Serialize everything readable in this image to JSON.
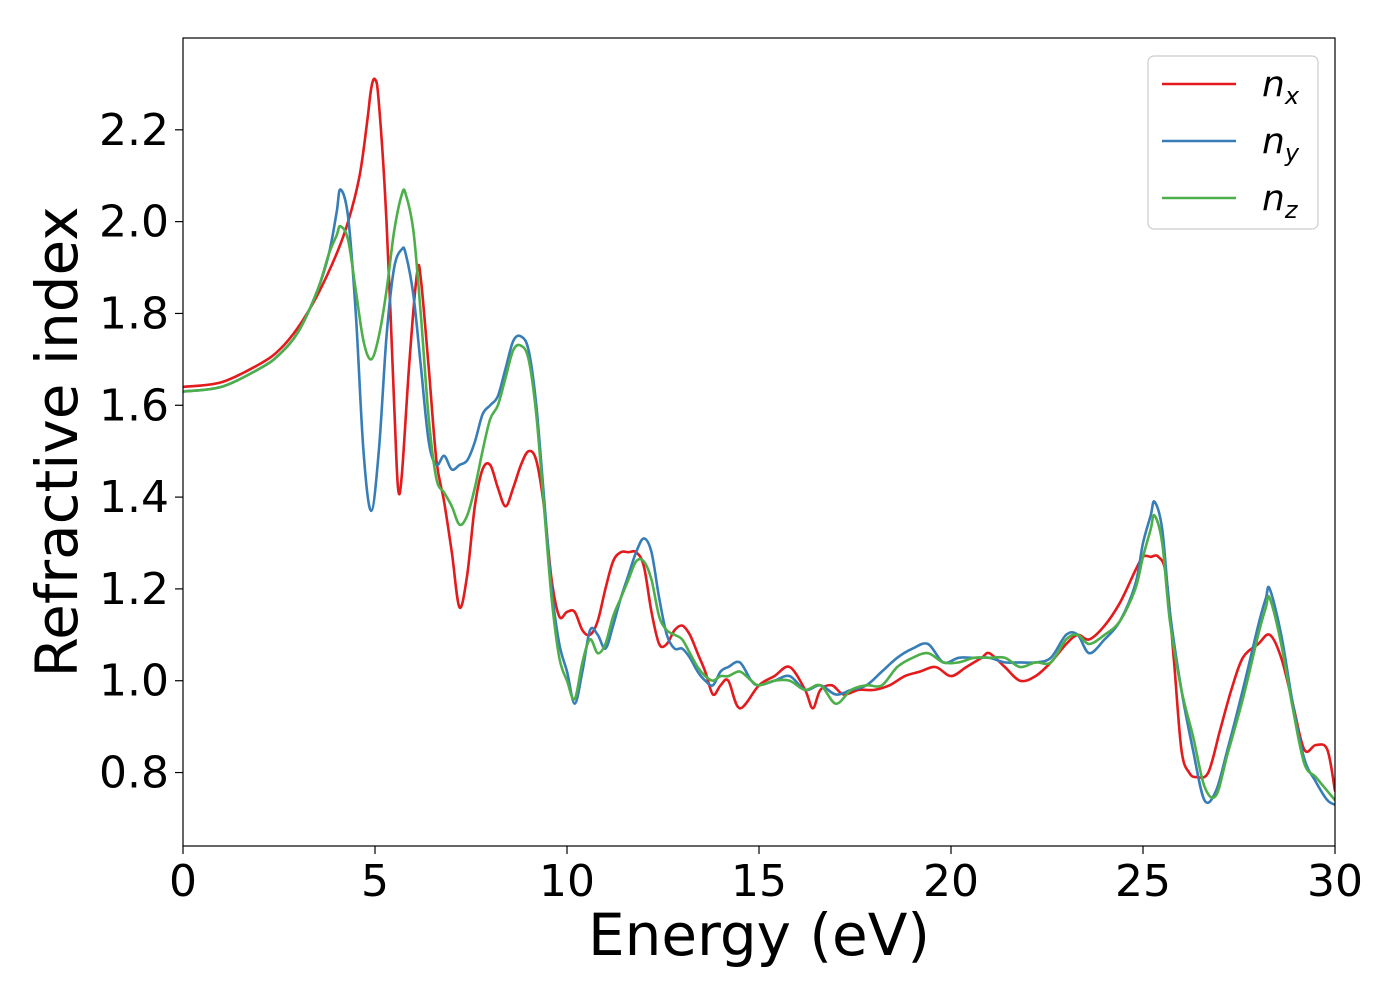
{
  "chart_data": {
    "type": "line",
    "xlabel": "Energy (eV)",
    "ylabel": "Refractive index",
    "xlim": [
      0,
      30
    ],
    "ylim": [
      0.64,
      2.4
    ],
    "xticks": [
      0,
      5,
      10,
      15,
      20,
      25,
      30
    ],
    "xtick_labels": [
      "0",
      "5",
      "10",
      "15",
      "20",
      "25",
      "30"
    ],
    "yticks": [
      0.8,
      1.0,
      1.2,
      1.4,
      1.6,
      1.8,
      2.0,
      2.2
    ],
    "ytick_labels": [
      "0.8",
      "1.0",
      "1.2",
      "1.4",
      "1.6",
      "1.8",
      "2.0",
      "2.2"
    ],
    "grid": false,
    "legend_position": "top-right",
    "series": [
      {
        "name": "n_x",
        "name_base": "n",
        "name_sub": "x",
        "color": "#e41a1c",
        "x": [
          0,
          1,
          2,
          2.5,
          3,
          3.5,
          4,
          4.3,
          4.6,
          4.8,
          4.9,
          5.0,
          5.1,
          5.3,
          5.5,
          5.6,
          5.7,
          5.9,
          6.1,
          6.2,
          6.4,
          6.6,
          6.8,
          7.0,
          7.2,
          7.4,
          7.6,
          7.8,
          8.0,
          8.2,
          8.4,
          8.6,
          8.8,
          9.0,
          9.2,
          9.4,
          9.6,
          9.8,
          10.0,
          10.2,
          10.4,
          10.6,
          10.8,
          11.0,
          11.2,
          11.4,
          11.6,
          11.8,
          12.0,
          12.2,
          12.4,
          12.6,
          12.8,
          13.0,
          13.2,
          13.4,
          13.6,
          13.8,
          14.0,
          14.2,
          14.5,
          15.0,
          15.4,
          15.8,
          16.2,
          16.4,
          16.6,
          16.9,
          17.2,
          17.6,
          18.0,
          18.4,
          18.8,
          19.2,
          19.6,
          20.0,
          20.4,
          20.8,
          21.0,
          21.4,
          21.8,
          22.2,
          22.6,
          23.0,
          23.3,
          23.6,
          24.0,
          24.4,
          24.8,
          25.0,
          25.2,
          25.4,
          25.6,
          25.8,
          26.0,
          26.2,
          26.4,
          26.7,
          27.0,
          27.3,
          27.6,
          28.0,
          28.3,
          28.6,
          28.9,
          29.2,
          29.5,
          29.8,
          30.0
        ],
        "values": [
          1.64,
          1.65,
          1.69,
          1.72,
          1.77,
          1.84,
          1.93,
          2.0,
          2.1,
          2.22,
          2.29,
          2.31,
          2.26,
          2.0,
          1.6,
          1.42,
          1.45,
          1.7,
          1.89,
          1.87,
          1.68,
          1.48,
          1.39,
          1.28,
          1.16,
          1.23,
          1.38,
          1.46,
          1.47,
          1.42,
          1.38,
          1.42,
          1.47,
          1.5,
          1.48,
          1.38,
          1.22,
          1.14,
          1.15,
          1.15,
          1.11,
          1.1,
          1.13,
          1.2,
          1.26,
          1.28,
          1.28,
          1.28,
          1.25,
          1.15,
          1.08,
          1.08,
          1.11,
          1.12,
          1.1,
          1.06,
          1.02,
          0.97,
          0.99,
          1.0,
          0.94,
          0.99,
          1.01,
          1.03,
          0.98,
          0.94,
          0.98,
          0.99,
          0.97,
          0.98,
          0.98,
          0.99,
          1.01,
          1.02,
          1.03,
          1.01,
          1.03,
          1.05,
          1.06,
          1.03,
          1.0,
          1.01,
          1.04,
          1.08,
          1.1,
          1.09,
          1.12,
          1.17,
          1.24,
          1.27,
          1.27,
          1.27,
          1.23,
          1.05,
          0.85,
          0.8,
          0.79,
          0.8,
          0.89,
          0.98,
          1.05,
          1.08,
          1.1,
          1.05,
          0.95,
          0.85,
          0.86,
          0.85,
          0.76
        ]
      },
      {
        "name": "n_y",
        "name_base": "n",
        "name_sub": "y",
        "color": "#377eb8",
        "x": [
          0,
          1,
          2,
          2.5,
          3,
          3.5,
          3.8,
          4.0,
          4.1,
          4.3,
          4.5,
          4.7,
          4.9,
          5.1,
          5.3,
          5.5,
          5.7,
          5.8,
          6.0,
          6.2,
          6.4,
          6.6,
          6.8,
          7.0,
          7.2,
          7.4,
          7.6,
          7.8,
          8.0,
          8.2,
          8.4,
          8.6,
          8.8,
          9.0,
          9.2,
          9.4,
          9.6,
          9.8,
          10.0,
          10.2,
          10.4,
          10.6,
          10.8,
          11.0,
          11.2,
          11.4,
          11.6,
          11.8,
          12.0,
          12.2,
          12.4,
          12.6,
          12.8,
          13.0,
          13.2,
          13.4,
          13.6,
          13.8,
          14.0,
          14.2,
          14.5,
          14.8,
          15.0,
          15.4,
          15.8,
          16.2,
          16.6,
          17.0,
          17.4,
          17.8,
          18.2,
          18.6,
          19.0,
          19.4,
          19.8,
          20.2,
          20.6,
          21.0,
          21.4,
          21.8,
          22.2,
          22.6,
          23.0,
          23.3,
          23.6,
          24.0,
          24.4,
          24.8,
          25.0,
          25.2,
          25.3,
          25.5,
          25.7,
          26.0,
          26.3,
          26.6,
          26.9,
          27.2,
          27.6,
          28.0,
          28.2,
          28.3,
          28.6,
          28.9,
          29.2,
          29.5,
          29.8,
          30.0
        ],
        "values": [
          1.63,
          1.64,
          1.68,
          1.71,
          1.76,
          1.85,
          1.93,
          2.02,
          2.07,
          2.01,
          1.8,
          1.5,
          1.37,
          1.5,
          1.75,
          1.9,
          1.94,
          1.93,
          1.84,
          1.68,
          1.52,
          1.47,
          1.49,
          1.46,
          1.47,
          1.48,
          1.52,
          1.58,
          1.6,
          1.62,
          1.68,
          1.74,
          1.75,
          1.72,
          1.6,
          1.4,
          1.2,
          1.08,
          1.02,
          0.95,
          1.02,
          1.11,
          1.1,
          1.07,
          1.12,
          1.18,
          1.23,
          1.28,
          1.31,
          1.28,
          1.18,
          1.1,
          1.07,
          1.07,
          1.05,
          1.02,
          1.0,
          0.99,
          1.02,
          1.03,
          1.04,
          1.0,
          0.99,
          1.0,
          1.01,
          0.98,
          0.99,
          0.97,
          0.98,
          0.99,
          1.02,
          1.05,
          1.07,
          1.08,
          1.04,
          1.05,
          1.05,
          1.05,
          1.04,
          1.04,
          1.04,
          1.05,
          1.1,
          1.1,
          1.06,
          1.09,
          1.13,
          1.21,
          1.3,
          1.36,
          1.39,
          1.33,
          1.15,
          0.98,
          0.85,
          0.74,
          0.76,
          0.85,
          0.98,
          1.12,
          1.18,
          1.2,
          1.1,
          0.95,
          0.83,
          0.78,
          0.74,
          0.73
        ]
      },
      {
        "name": "n_z",
        "name_base": "n",
        "name_sub": "z",
        "color": "#4daf4a",
        "x": [
          0,
          1,
          2,
          2.5,
          3,
          3.5,
          3.8,
          4.0,
          4.1,
          4.3,
          4.5,
          4.7,
          4.9,
          5.1,
          5.3,
          5.5,
          5.7,
          5.8,
          6.0,
          6.2,
          6.4,
          6.6,
          6.8,
          7.0,
          7.2,
          7.4,
          7.6,
          7.8,
          8.0,
          8.2,
          8.4,
          8.6,
          8.8,
          9.0,
          9.2,
          9.4,
          9.6,
          9.8,
          10.0,
          10.2,
          10.4,
          10.6,
          10.8,
          11.0,
          11.2,
          11.4,
          11.6,
          11.8,
          12.0,
          12.2,
          12.4,
          12.6,
          12.8,
          13.0,
          13.2,
          13.4,
          13.6,
          13.8,
          14.0,
          14.2,
          14.5,
          14.8,
          15.0,
          15.4,
          15.8,
          16.2,
          16.6,
          17.0,
          17.4,
          17.8,
          18.2,
          18.6,
          19.0,
          19.4,
          19.8,
          20.2,
          20.6,
          21.0,
          21.4,
          21.8,
          22.2,
          22.6,
          23.0,
          23.3,
          23.6,
          24.0,
          24.4,
          24.8,
          25.0,
          25.2,
          25.3,
          25.5,
          25.7,
          26.0,
          26.3,
          26.6,
          26.9,
          27.2,
          27.6,
          28.0,
          28.2,
          28.3,
          28.6,
          28.9,
          29.2,
          29.5,
          29.8,
          30.0
        ],
        "values": [
          1.63,
          1.64,
          1.68,
          1.71,
          1.76,
          1.85,
          1.93,
          1.97,
          1.99,
          1.96,
          1.85,
          1.74,
          1.7,
          1.75,
          1.85,
          1.98,
          2.06,
          2.06,
          1.98,
          1.79,
          1.57,
          1.44,
          1.41,
          1.38,
          1.34,
          1.36,
          1.42,
          1.5,
          1.57,
          1.6,
          1.66,
          1.72,
          1.73,
          1.7,
          1.58,
          1.38,
          1.18,
          1.05,
          1.0,
          0.96,
          1.04,
          1.09,
          1.06,
          1.08,
          1.14,
          1.18,
          1.22,
          1.26,
          1.26,
          1.22,
          1.14,
          1.11,
          1.1,
          1.09,
          1.06,
          1.03,
          1.01,
          1.0,
          1.01,
          1.01,
          1.02,
          1.0,
          0.99,
          1.0,
          1.0,
          0.98,
          0.99,
          0.95,
          0.98,
          0.99,
          0.99,
          1.03,
          1.05,
          1.06,
          1.04,
          1.04,
          1.05,
          1.05,
          1.05,
          1.03,
          1.04,
          1.04,
          1.09,
          1.1,
          1.08,
          1.1,
          1.13,
          1.2,
          1.27,
          1.33,
          1.36,
          1.3,
          1.13,
          0.98,
          0.88,
          0.77,
          0.75,
          0.84,
          0.96,
          1.1,
          1.16,
          1.18,
          1.08,
          0.94,
          0.82,
          0.79,
          0.76,
          0.74
        ]
      }
    ]
  }
}
